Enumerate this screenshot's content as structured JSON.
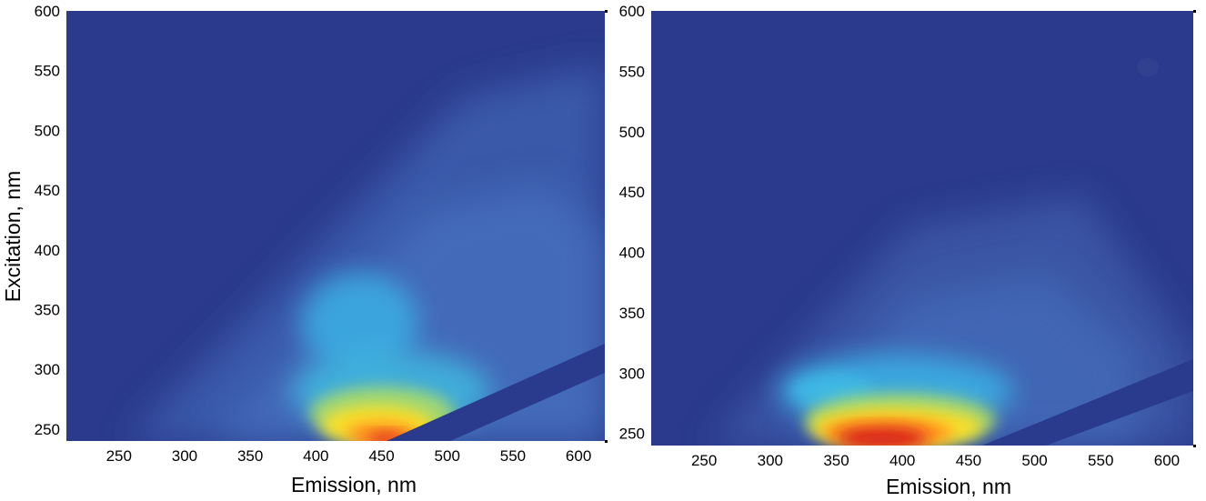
{
  "chart_data": [
    {
      "type": "heatmap",
      "title": "",
      "xlabel": "Emission, nm",
      "ylabel": "Excitation, nm",
      "xlim": [
        210,
        620
      ],
      "ylim": [
        240,
        600
      ],
      "x_ticks": [
        250,
        300,
        350,
        400,
        450,
        500,
        550,
        600
      ],
      "y_ticks": [
        250,
        300,
        350,
        400,
        450,
        500,
        550,
        600
      ],
      "colormap": [
        "#2a3a8f",
        "#3f63b8",
        "#3bb0e8",
        "#a0dc7a",
        "#ffe028",
        "#ff8a1e",
        "#d61e1e"
      ],
      "background_color": "#2b3a8c",
      "scatter_band": {
        "ex_at_em_450": 240,
        "ex_at_em_620": 320
      },
      "peaks": [
        {
          "em": 430,
          "ex": 248,
          "intensity": 1.0
        },
        {
          "em": 415,
          "ex": 325,
          "intensity": 0.45
        }
      ]
    },
    {
      "type": "heatmap",
      "title": "",
      "xlabel": "Emission, nm",
      "ylabel": "",
      "xlim": [
        210,
        620
      ],
      "ylim": [
        240,
        600
      ],
      "x_ticks": [
        250,
        300,
        350,
        400,
        450,
        500,
        550,
        600
      ],
      "y_ticks": [
        250,
        300,
        350,
        400,
        450,
        500,
        550,
        600
      ],
      "colormap": [
        "#2a3a8f",
        "#3f63b8",
        "#3bb0e8",
        "#a0dc7a",
        "#ffe028",
        "#ff8a1e",
        "#d61e1e"
      ],
      "background_color": "#2b3a8c",
      "scatter_band": {
        "ex_at_em_450": 240,
        "ex_at_em_620": 310
      },
      "peaks": [
        {
          "em": 385,
          "ex": 248,
          "intensity": 1.0
        },
        {
          "em": 360,
          "ex": 285,
          "intensity": 0.4
        }
      ]
    }
  ]
}
